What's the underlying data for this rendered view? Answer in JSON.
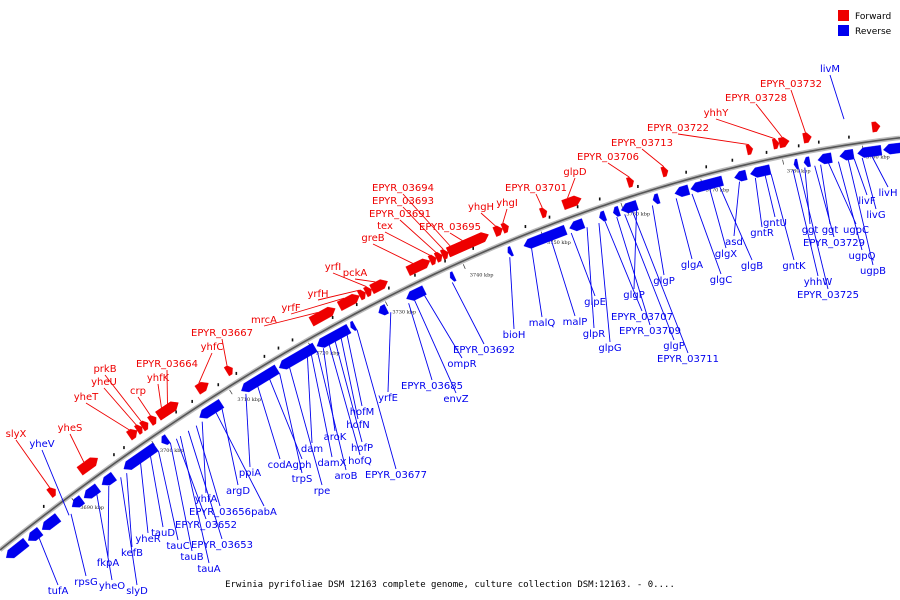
{
  "legend": {
    "forward_label": "Forward",
    "reverse_label": "Reverse",
    "forward_color": "#ee0000",
    "reverse_color": "#0000ee"
  },
  "caption": "Erwinia pyrifoliae DSM 12163 complete genome, culture collection DSM:12163. - 0....",
  "ticks": [
    "3690 kbp",
    "3700 kbp",
    "3710 kbp",
    "3720 kbp",
    "3730 kbp",
    "3740 kbp",
    "3750 kbp",
    "3760 kbp",
    "3770 kbp",
    "3780 kbp",
    "3790 kbp"
  ],
  "forward_labels": [
    "slyX",
    "yheS",
    "yheT",
    "yheU",
    "prkB",
    "crp",
    "yhfK",
    "EPYR_03664",
    "yhfC",
    "EPYR_03667",
    "mrcA",
    "yrfF",
    "yrfH",
    "yrfI",
    "pckA",
    "greB",
    "tex",
    "EPYR_03691",
    "EPYR_03693",
    "EPYR_03694",
    "EPYR_03695",
    "yhgH",
    "yhgI",
    "EPYR_03701",
    "glpD",
    "EPYR_03706",
    "EPYR_03713",
    "EPYR_03722",
    "yhhY",
    "EPYR_03728",
    "EPYR_03732"
  ],
  "reverse_labels": [
    "yheV",
    "tufA",
    "rpsG",
    "yheO",
    "slyD",
    "fkpA",
    "kefB",
    "yheR",
    "tauD",
    "tauC",
    "tauB",
    "tauA",
    "EPYR_03653",
    "EPYR_03652",
    "EPYR_03656",
    "yhfA",
    "pabA",
    "argD",
    "ppiA",
    "codA",
    "gph",
    "trpS",
    "rpe",
    "dam",
    "damX",
    "aroB",
    "aroK",
    "hofQ",
    "hofP",
    "hofN",
    "hofM",
    "EPYR_03677",
    "yrfE",
    "EPYR_03685",
    "envZ",
    "ompR",
    "EPYR_03692",
    "bioH",
    "malQ",
    "malP",
    "glpE",
    "glpR",
    "glpG",
    "EPYR_03707",
    "EPYR_03709",
    "glgP",
    "EPYR_03711",
    "glgP",
    "glgP",
    "glgA",
    "glgC",
    "glgX",
    "glgB",
    "asd",
    "gntR",
    "gntU",
    "gntK",
    "yhhW",
    "EPYR_03725",
    "ggt",
    "ggt",
    "EPYR_03729",
    "ugpC",
    "ugpQ",
    "ugpB",
    "livF",
    "livG",
    "livH",
    "livM"
  ]
}
